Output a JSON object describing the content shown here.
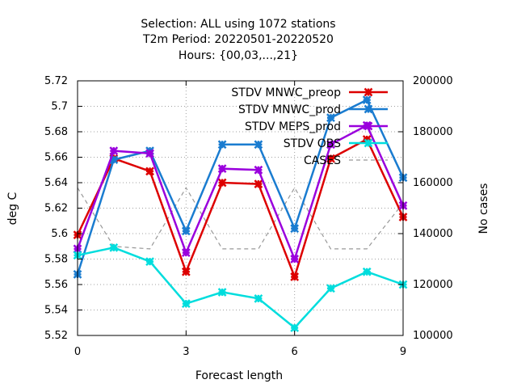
{
  "chart_data": {
    "type": "line",
    "title_lines": [
      "Selection: ALL using  1072 stations",
      "T2m   Period: 20220501-20220520",
      "Hours: {00,03,...,21}"
    ],
    "xlabel": "Forecast length",
    "ylabel": "deg C",
    "y2label": "No cases",
    "xlim": [
      0,
      9
    ],
    "ylim": [
      5.52,
      5.72
    ],
    "y2lim": [
      100000,
      200000
    ],
    "x_ticks": [
      0,
      3,
      6,
      9
    ],
    "y_ticks": [
      "5.52",
      "5.54",
      "5.56",
      "5.58",
      "5.6",
      "5.62",
      "5.64",
      "5.66",
      "5.68",
      "5.7",
      "5.72"
    ],
    "y2_ticks": [
      "100000",
      "120000",
      "140000",
      "160000",
      "180000",
      "200000"
    ],
    "grid": true,
    "legend_position": "top-right",
    "x": [
      0,
      1,
      2,
      3,
      4,
      5,
      6,
      7,
      8,
      9
    ],
    "series": [
      {
        "name": "STDV MNWC_preop",
        "color": "#dd0000",
        "axis": "y1",
        "marker": "star",
        "values": [
          5.599,
          5.659,
          5.649,
          5.57,
          5.64,
          5.639,
          5.566,
          5.659,
          5.674,
          5.613
        ]
      },
      {
        "name": "STDV MNWC_prod",
        "color": "#1a7cd0",
        "axis": "y1",
        "marker": "star",
        "values": [
          5.568,
          5.658,
          5.665,
          5.602,
          5.67,
          5.67,
          5.604,
          5.691,
          5.705,
          5.644
        ]
      },
      {
        "name": "STDV MEPS_prod",
        "color": "#9a00dd",
        "axis": "y1",
        "marker": "star",
        "values": [
          5.588,
          5.665,
          5.663,
          5.585,
          5.651,
          5.65,
          5.58,
          5.67,
          5.685,
          5.622
        ]
      },
      {
        "name": "STDV OBS",
        "color": "#00dddd",
        "axis": "y1",
        "marker": "star",
        "values": [
          5.583,
          5.589,
          5.578,
          5.545,
          5.554,
          5.549,
          5.526,
          5.557,
          5.57,
          5.56
        ]
      },
      {
        "name": "CASES",
        "color": "#999999",
        "axis": "y2",
        "marker": "none",
        "dashed": true,
        "values": [
          158000,
          135000,
          134000,
          158000,
          134000,
          134000,
          158000,
          134000,
          134000,
          152000
        ]
      }
    ]
  }
}
